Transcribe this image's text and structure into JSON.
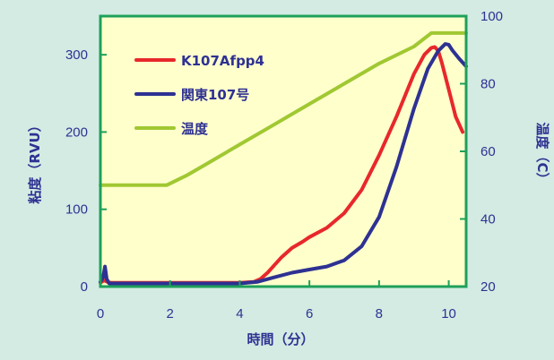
{
  "chart_data": {
    "type": "line",
    "title": "",
    "xlabel": "時間（分）",
    "ylabel_left": "粘度（RVU）",
    "ylabel_right": "温度（C）",
    "xlim": [
      0,
      10.5
    ],
    "ylim_left": [
      0,
      350
    ],
    "ylim_right": [
      20,
      100
    ],
    "x_ticks": [
      "0",
      "2",
      "4",
      "6",
      "8",
      "10"
    ],
    "y_left_ticks": [
      "0",
      "100",
      "200",
      "300"
    ],
    "y_right_ticks": [
      "20",
      "40",
      "60",
      "80",
      "100"
    ],
    "grid": false,
    "legend_position": "top-left",
    "colors": {
      "background": "#d3ebe3",
      "plot_background": "#ffffcc",
      "frame": "#1ea05a",
      "text": "#2e3192"
    },
    "series": [
      {
        "name": "K107Afpp4",
        "axis": "left",
        "color": "#e8282b",
        "x": [
          0,
          0.1,
          0.2,
          0.3,
          0.5,
          1,
          2,
          3,
          4,
          4.4,
          4.6,
          4.8,
          5.0,
          5.2,
          5.5,
          5.8,
          6.0,
          6.5,
          7.0,
          7.5,
          8.0,
          8.5,
          9.0,
          9.3,
          9.5,
          9.6,
          9.7,
          9.8,
          10.0,
          10.2,
          10.4
        ],
        "y": [
          5,
          8,
          6,
          5,
          5,
          5,
          5,
          5,
          5,
          6,
          10,
          18,
          28,
          38,
          50,
          58,
          64,
          76,
          95,
          125,
          170,
          220,
          275,
          300,
          309,
          310,
          305,
          290,
          255,
          220,
          200
        ]
      },
      {
        "name": "関東107号",
        "axis": "left",
        "color": "#2e3192",
        "x": [
          0,
          0.08,
          0.13,
          0.18,
          0.25,
          0.4,
          1,
          2,
          3,
          4,
          4.5,
          5.0,
          5.5,
          6.0,
          6.5,
          7.0,
          7.5,
          8.0,
          8.5,
          9.0,
          9.4,
          9.7,
          9.9,
          10.0,
          10.1,
          10.3,
          10.5
        ],
        "y": [
          6,
          12,
          26,
          10,
          4,
          4,
          4,
          4,
          4,
          4,
          6,
          12,
          18,
          22,
          26,
          34,
          52,
          90,
          155,
          230,
          282,
          305,
          314,
          313,
          306,
          295,
          285
        ]
      },
      {
        "name": "温度",
        "axis": "right",
        "color": "#a0c832",
        "x": [
          0,
          1.9,
          2.5,
          3.0,
          4.0,
          5.0,
          6.0,
          7.0,
          8.0,
          9.0,
          9.5,
          10.5
        ],
        "y": [
          50,
          50,
          53,
          56,
          62,
          68,
          74,
          80,
          86,
          91,
          95,
          95
        ]
      }
    ]
  }
}
